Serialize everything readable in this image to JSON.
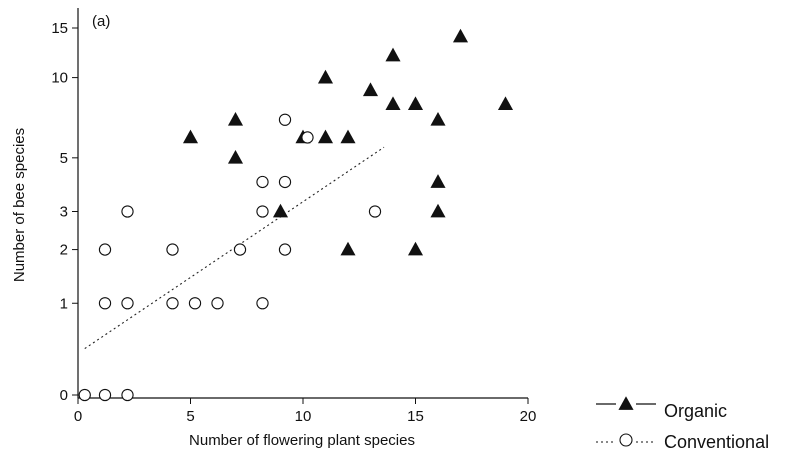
{
  "chart_data": {
    "type": "scatter",
    "panel_label": "(a)",
    "xlabel": "Number of flowering plant species",
    "ylabel": "Number of bee species",
    "xlim": [
      0,
      20
    ],
    "ylim": [
      0,
      15
    ],
    "y_scale": "log(y+1)",
    "x_ticks": [
      0,
      5,
      10,
      15,
      20
    ],
    "y_ticks": [
      0,
      1,
      2,
      3,
      5,
      10,
      15
    ],
    "grid": false,
    "legend_position": "bottom-right, outside plot",
    "series": [
      {
        "name": "Organic",
        "marker": "filled-triangle",
        "line_style": "solid",
        "color": "#111111",
        "points": [
          [
            5,
            6
          ],
          [
            7,
            7
          ],
          [
            7,
            5
          ],
          [
            9,
            3
          ],
          [
            10,
            6
          ],
          [
            11,
            10
          ],
          [
            11,
            6
          ],
          [
            12,
            6
          ],
          [
            12,
            2
          ],
          [
            13,
            9
          ],
          [
            14,
            12
          ],
          [
            14,
            8
          ],
          [
            15,
            8
          ],
          [
            15,
            2
          ],
          [
            16,
            7
          ],
          [
            16,
            4
          ],
          [
            16,
            3
          ],
          [
            17,
            14
          ],
          [
            19,
            8
          ]
        ]
      },
      {
        "name": "Conventional",
        "marker": "open-circle",
        "line_style": "dotted",
        "color": "#111111",
        "points": [
          [
            0.3,
            0
          ],
          [
            1.2,
            0
          ],
          [
            2.2,
            0
          ],
          [
            1.2,
            2
          ],
          [
            1.2,
            1
          ],
          [
            2.2,
            1
          ],
          [
            2.2,
            3
          ],
          [
            4.2,
            2
          ],
          [
            4.2,
            1
          ],
          [
            5.2,
            1
          ],
          [
            6.2,
            1
          ],
          [
            7.2,
            2
          ],
          [
            8.2,
            1
          ],
          [
            8.2,
            4
          ],
          [
            8.2,
            3
          ],
          [
            9.2,
            4
          ],
          [
            9.2,
            2
          ],
          [
            9.2,
            7
          ],
          [
            10.2,
            6
          ],
          [
            13.2,
            3
          ]
        ],
        "fit_line": {
          "x": [
            0.3,
            13.6
          ],
          "y": [
            0.42,
            5.5
          ]
        }
      }
    ]
  }
}
